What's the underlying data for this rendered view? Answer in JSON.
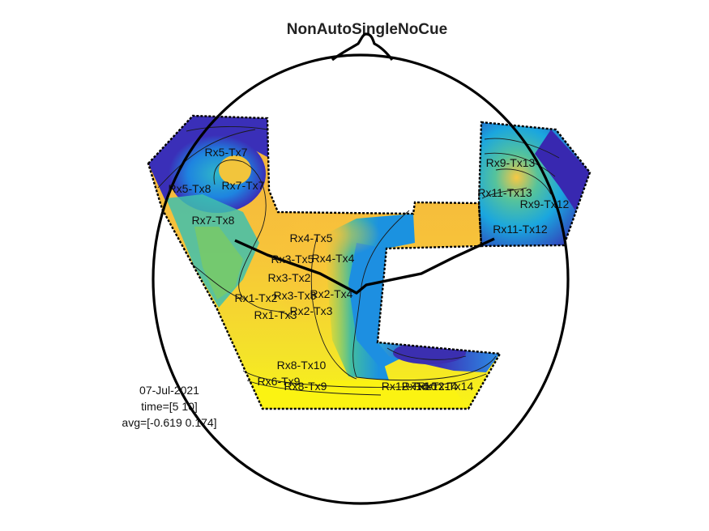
{
  "chart_data": {
    "type": "heatmap",
    "title": "NonAutoSingleNoCue",
    "colormap": "parula",
    "clim": [
      -0.619,
      0.174
    ],
    "channels": [
      "Rx5-Tx7",
      "Rx5-Tx8",
      "Rx7-Tx7",
      "Rx7-Tx8",
      "Rx4-Tx5",
      "Rx3-Tx5",
      "Rx4-Tx4",
      "Rx3-Tx2",
      "Rx1-Tx2",
      "Rx3-Tx3",
      "Rx2-Tx4",
      "Rx1-Tx3",
      "Rx2-Tx3",
      "Rx9-Tx13",
      "Rx11-Tx13",
      "Rx9-Tx12",
      "Rx11-Tx12",
      "Rx8-Tx10",
      "Rx6-Tx9",
      "Rx8-Tx9",
      "Rx12-Tx10",
      "Rx12-Tx14",
      "Rx14-Tx14"
    ],
    "info": {
      "date": "07-Jul-2021",
      "time": "time=[5 10]",
      "avg": "avg=[-0.619 0.174]"
    }
  }
}
